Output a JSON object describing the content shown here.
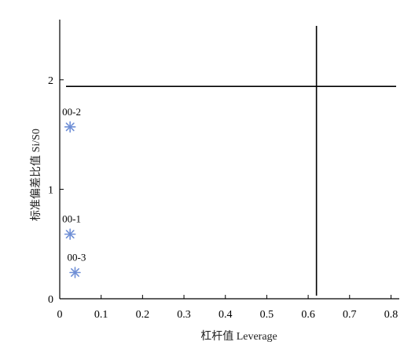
{
  "chart_data": {
    "type": "scatter",
    "title": "",
    "xlabel": "杠杆值 Leverage",
    "ylabel": "标准偏差比值 Si/S0",
    "xlim": [
      0,
      0.82
    ],
    "ylim": [
      0,
      2.55
    ],
    "x_ticks": [
      0,
      0.1,
      0.2,
      0.3,
      0.4,
      0.5,
      0.6,
      0.7,
      0.8
    ],
    "x_tick_labels": [
      "0",
      "0.1",
      "0.2",
      "0.3",
      "0.4",
      "0.5",
      "0.6",
      "0.7",
      "0.8"
    ],
    "y_ticks": [
      0,
      1,
      2
    ],
    "y_tick_labels": [
      "0",
      "1",
      "2"
    ],
    "grid": false,
    "points": [
      {
        "label": "00-2",
        "x": 0.025,
        "y": 1.57
      },
      {
        "label": "00-1",
        "x": 0.025,
        "y": 0.59
      },
      {
        "label": "00-3",
        "x": 0.037,
        "y": 0.24
      }
    ],
    "reference_lines": {
      "vertical_x": 0.62,
      "horizontal_y": 1.94
    },
    "marker_color": "#6f8fd6"
  }
}
